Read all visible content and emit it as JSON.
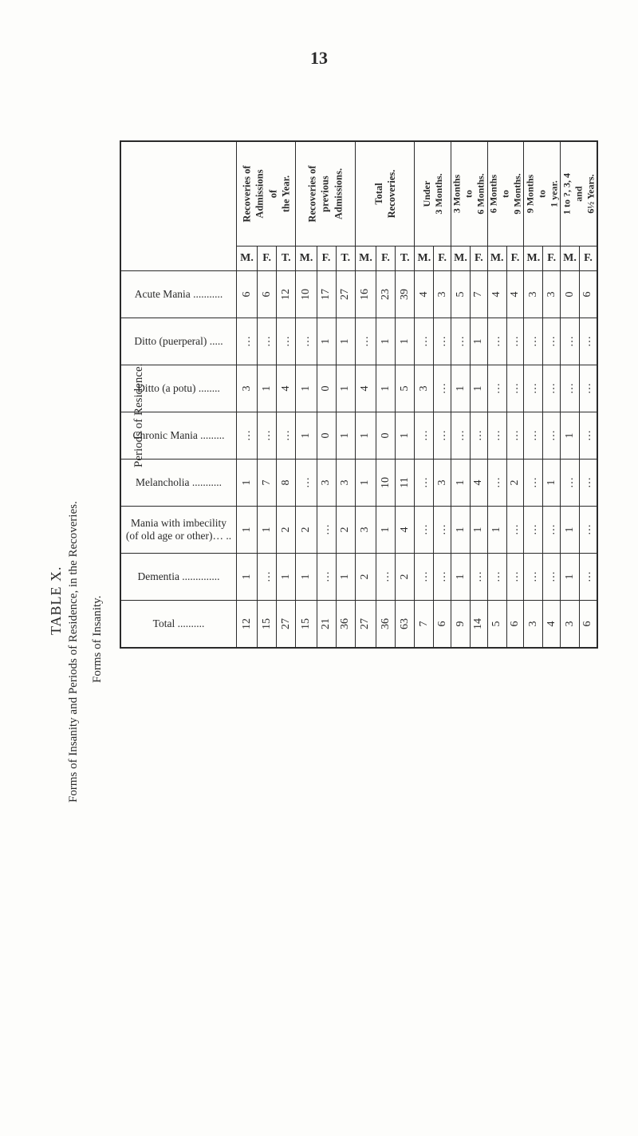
{
  "page_number": "13",
  "title": "TABLE X.",
  "subtitle": "Forms of Insanity and Periods of Residence, in the Recoveries.",
  "row_header_title": "Forms of Insanity.",
  "periods_caption": "Periods of Residence.",
  "groups": {
    "g1": {
      "label": "Recoveries of\nAdmissions\nof\nthe Year."
    },
    "g2": {
      "label": "Recoveries of\nprevious\nAdmissions."
    },
    "g3": {
      "label": "Total\nRecoveries."
    }
  },
  "mf": {
    "m": "M.",
    "f": "F.",
    "t": "T."
  },
  "periods": {
    "p1": "Under\n3 Months.",
    "p2": "3 Months\nto\n6 Months.",
    "p3": "6 Months\nto\n9 Months.",
    "p4": "9 Months\nto\n1 year.",
    "p5": "1 to ?, 3, 4\nand\n6½ Years."
  },
  "rows": [
    {
      "label": "Acute Mania",
      "g1": {
        "m": "6",
        "f": "6",
        "t": "12"
      },
      "g2": {
        "m": "10",
        "f": "17",
        "t": "27"
      },
      "g3": {
        "m": "16",
        "f": "23",
        "t": "39"
      },
      "p1": {
        "m": "4",
        "f": "3"
      },
      "p2": {
        "m": "5",
        "f": "7"
      },
      "p3": {
        "m": "4",
        "f": "4"
      },
      "p4": {
        "m": "3",
        "f": "3"
      },
      "p5": {
        "m": "0",
        "f": "6"
      }
    },
    {
      "label": "Ditto (puerperal)",
      "g1": {
        "m": "…",
        "f": "…",
        "t": "…"
      },
      "g2": {
        "m": "…",
        "f": "1",
        "t": "1"
      },
      "g3": {
        "m": "…",
        "f": "1",
        "t": "1"
      },
      "p1": {
        "m": "…",
        "f": "…"
      },
      "p2": {
        "m": "…",
        "f": "1"
      },
      "p3": {
        "m": "…",
        "f": "…"
      },
      "p4": {
        "m": "…",
        "f": "…"
      },
      "p5": {
        "m": "…",
        "f": "…"
      }
    },
    {
      "label": "Ditto (a potu)",
      "g1": {
        "m": "3",
        "f": "1",
        "t": "4"
      },
      "g2": {
        "m": "1",
        "f": "0",
        "t": "1"
      },
      "g3": {
        "m": "4",
        "f": "1",
        "t": "5"
      },
      "p1": {
        "m": "3",
        "f": "…"
      },
      "p2": {
        "m": "1",
        "f": "1"
      },
      "p3": {
        "m": "…",
        "f": "…"
      },
      "p4": {
        "m": "…",
        "f": "…"
      },
      "p5": {
        "m": "…",
        "f": "…"
      }
    },
    {
      "label": "Chronic Mania",
      "g1": {
        "m": "…",
        "f": "…",
        "t": "…"
      },
      "g2": {
        "m": "1",
        "f": "0",
        "t": "1"
      },
      "g3": {
        "m": "1",
        "f": "0",
        "t": "1"
      },
      "p1": {
        "m": "…",
        "f": "…"
      },
      "p2": {
        "m": "…",
        "f": "…"
      },
      "p3": {
        "m": "…",
        "f": "…"
      },
      "p4": {
        "m": "…",
        "f": "…"
      },
      "p5": {
        "m": "1",
        "f": "…"
      }
    },
    {
      "label": "Melancholia",
      "g1": {
        "m": "1",
        "f": "7",
        "t": "8"
      },
      "g2": {
        "m": "…",
        "f": "3",
        "t": "3"
      },
      "g3": {
        "m": "1",
        "f": "10",
        "t": "11"
      },
      "p1": {
        "m": "…",
        "f": "3"
      },
      "p2": {
        "m": "1",
        "f": "4"
      },
      "p3": {
        "m": "…",
        "f": "2"
      },
      "p4": {
        "m": "…",
        "f": "1"
      },
      "p5": {
        "m": "…",
        "f": "…"
      }
    },
    {
      "label": "Mania with imbecility\n(of old age or other)…",
      "g1": {
        "m": "1",
        "f": "1",
        "t": "2"
      },
      "g2": {
        "m": "2",
        "f": "…",
        "t": "2"
      },
      "g3": {
        "m": "3",
        "f": "1",
        "t": "4"
      },
      "p1": {
        "m": "…",
        "f": "…"
      },
      "p2": {
        "m": "1",
        "f": "1"
      },
      "p3": {
        "m": "1",
        "f": "…"
      },
      "p4": {
        "m": "…",
        "f": "…"
      },
      "p5": {
        "m": "1",
        "f": "…"
      }
    },
    {
      "label": "Dementia",
      "g1": {
        "m": "1",
        "f": "…",
        "t": "1"
      },
      "g2": {
        "m": "1",
        "f": "…",
        "t": "1"
      },
      "g3": {
        "m": "2",
        "f": "…",
        "t": "2"
      },
      "p1": {
        "m": "…",
        "f": "…"
      },
      "p2": {
        "m": "1",
        "f": "…"
      },
      "p3": {
        "m": "…",
        "f": "…"
      },
      "p4": {
        "m": "…",
        "f": "…"
      },
      "p5": {
        "m": "1",
        "f": "…"
      }
    }
  ],
  "total": {
    "label": "Total",
    "g1": {
      "m": "12",
      "f": "15",
      "t": "27"
    },
    "g2": {
      "m": "15",
      "f": "21",
      "t": "36"
    },
    "g3": {
      "m": "27",
      "f": "36",
      "t": "63"
    },
    "p1": {
      "m": "7",
      "f": "6"
    },
    "p2": {
      "m": "9",
      "f": "14"
    },
    "p3": {
      "m": "5",
      "f": "6"
    },
    "p4": {
      "m": "3",
      "f": "4"
    },
    "p5": {
      "m": "3",
      "f": "6"
    }
  },
  "style": {
    "background_color": "#fdfdfb",
    "text_color": "#2a2a2a",
    "border_color": "#2a2a2a",
    "font_family": "Times New Roman",
    "page_number_fontsize": 22,
    "body_fontsize": 14,
    "rotation_deg": -90
  }
}
